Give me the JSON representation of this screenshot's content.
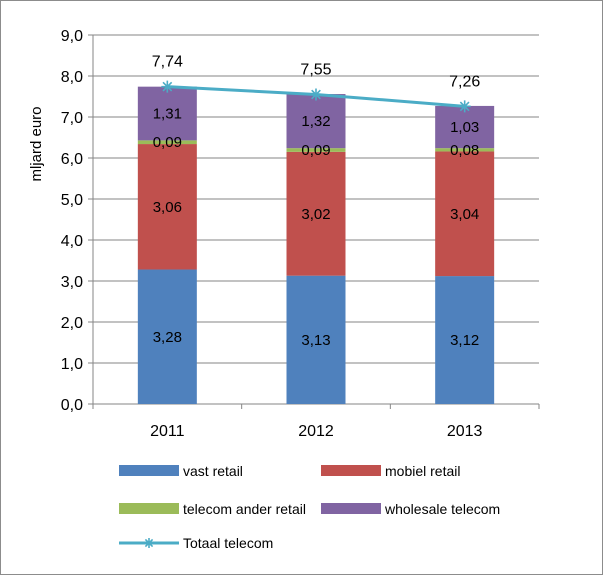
{
  "chart_data": {
    "type": "bar",
    "stacked": true,
    "categories": [
      "2011",
      "2012",
      "2013"
    ],
    "ylabel": "mljard euro",
    "ylim": [
      0,
      9
    ],
    "yticks": [
      "0,0",
      "1,0",
      "2,0",
      "3,0",
      "4,0",
      "5,0",
      "6,0",
      "7,0",
      "8,0",
      "9,0"
    ],
    "grid": true,
    "legend_position": "bottom",
    "series": [
      {
        "name": "vast retail",
        "color": "#4f81bd",
        "values": [
          3.28,
          3.13,
          3.12
        ],
        "labels": [
          "3,28",
          "3,13",
          "3,12"
        ]
      },
      {
        "name": "mobiel retail",
        "color": "#c0504d",
        "values": [
          3.06,
          3.02,
          3.04
        ],
        "labels": [
          "3,06",
          "3,02",
          "3,04"
        ]
      },
      {
        "name": "telecom ander retail",
        "color": "#9bbb59",
        "values": [
          0.09,
          0.09,
          0.08
        ],
        "labels": [
          "0,09",
          "0,09",
          "0,08"
        ]
      },
      {
        "name": "wholesale telecom",
        "color": "#8064a2",
        "values": [
          1.31,
          1.32,
          1.03
        ],
        "labels": [
          "1,31",
          "1,32",
          "1,03"
        ]
      }
    ],
    "line_series": {
      "name": "Totaal telecom",
      "color": "#4bacc6",
      "marker": "star",
      "values": [
        7.74,
        7.55,
        7.26
      ],
      "labels": [
        "7,74",
        "7,55",
        "7,26"
      ]
    }
  }
}
